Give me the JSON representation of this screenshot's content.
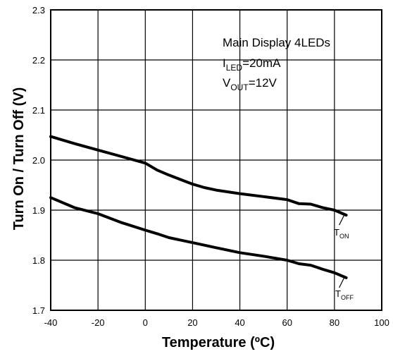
{
  "chart_data": {
    "type": "line",
    "xlabel": "Temperature (ºC)",
    "ylabel": "Turn On / Turn Off (V)",
    "xlim": [
      -40,
      100
    ],
    "ylim": [
      1.7,
      2.3
    ],
    "xticks": [
      "-40",
      "-20",
      "0",
      "20",
      "40",
      "60",
      "80",
      "100"
    ],
    "yticks": [
      "1.7",
      "1.8",
      "1.9",
      "2.0",
      "2.1",
      "2.2",
      "2.3"
    ],
    "grid": true,
    "annotation": {
      "line1": "Main Display 4LEDs",
      "line2_main": "I",
      "line2_sub": "LED",
      "line2_rest": "=20mA",
      "line3_main": "V",
      "line3_sub": "OUT",
      "line3_rest": "=12V"
    },
    "series": [
      {
        "label_main": "T",
        "label_sub": "ON",
        "x": [
          -40,
          -30,
          -20,
          -10,
          0,
          5,
          10,
          20,
          25,
          30,
          40,
          50,
          60,
          65,
          70,
          75,
          80,
          85
        ],
        "y": [
          2.047,
          2.033,
          2.02,
          2.007,
          1.994,
          1.98,
          1.97,
          1.952,
          1.945,
          1.94,
          1.933,
          1.927,
          1.921,
          1.913,
          1.912,
          1.905,
          1.9,
          1.89
        ]
      },
      {
        "label_main": "T",
        "label_sub": "OFF",
        "x": [
          -40,
          -30,
          -20,
          -10,
          0,
          5,
          10,
          20,
          30,
          40,
          50,
          60,
          65,
          70,
          75,
          80,
          85
        ],
        "y": [
          1.925,
          1.905,
          1.893,
          1.875,
          1.86,
          1.853,
          1.845,
          1.835,
          1.825,
          1.815,
          1.808,
          1.8,
          1.793,
          1.79,
          1.782,
          1.775,
          1.765
        ]
      }
    ]
  }
}
